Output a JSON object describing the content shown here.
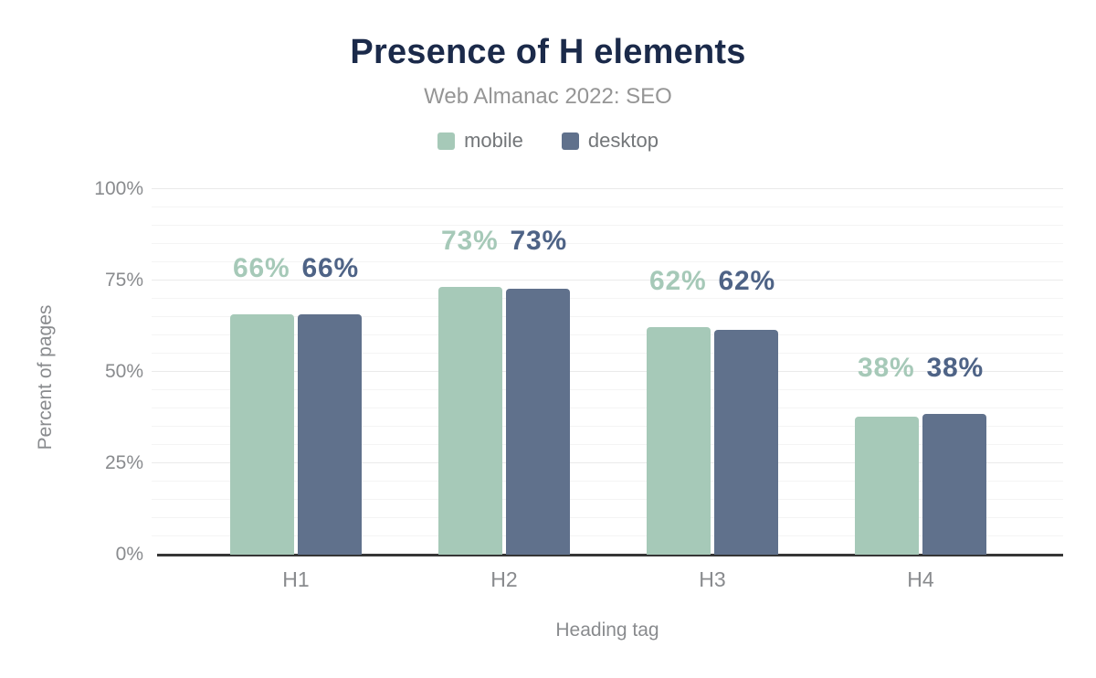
{
  "chart_data": {
    "type": "bar",
    "title": "Presence of H elements",
    "subtitle": "Web Almanac 2022: SEO",
    "categories": [
      "H1",
      "H2",
      "H3",
      "H4"
    ],
    "series": [
      {
        "name": "mobile",
        "color": "#a6c9b8",
        "label_color": "#a6c9b8",
        "values": [
          65.8,
          73.2,
          62.2,
          37.8
        ],
        "data_labels": [
          "66%",
          "73%",
          "62%",
          "38%"
        ]
      },
      {
        "name": "desktop",
        "color": "#60718c",
        "label_color": "#4e6386",
        "values": [
          65.7,
          72.7,
          61.6,
          38.4
        ],
        "data_labels": [
          "66%",
          "73%",
          "62%",
          "38%"
        ]
      }
    ],
    "xlabel": "Heading tag",
    "ylabel": "Percent of pages",
    "ylim": [
      0,
      100
    ],
    "yticks": [
      0,
      25,
      50,
      75,
      100
    ],
    "ytick_labels": [
      "0%",
      "25%",
      "50%",
      "75%",
      "100%"
    ],
    "grid": true,
    "minor_grid_step": 5,
    "major_grid_step": 25,
    "legend_position": "top",
    "title_color": "#1b2a4a",
    "subtitle_color": "#959595"
  }
}
